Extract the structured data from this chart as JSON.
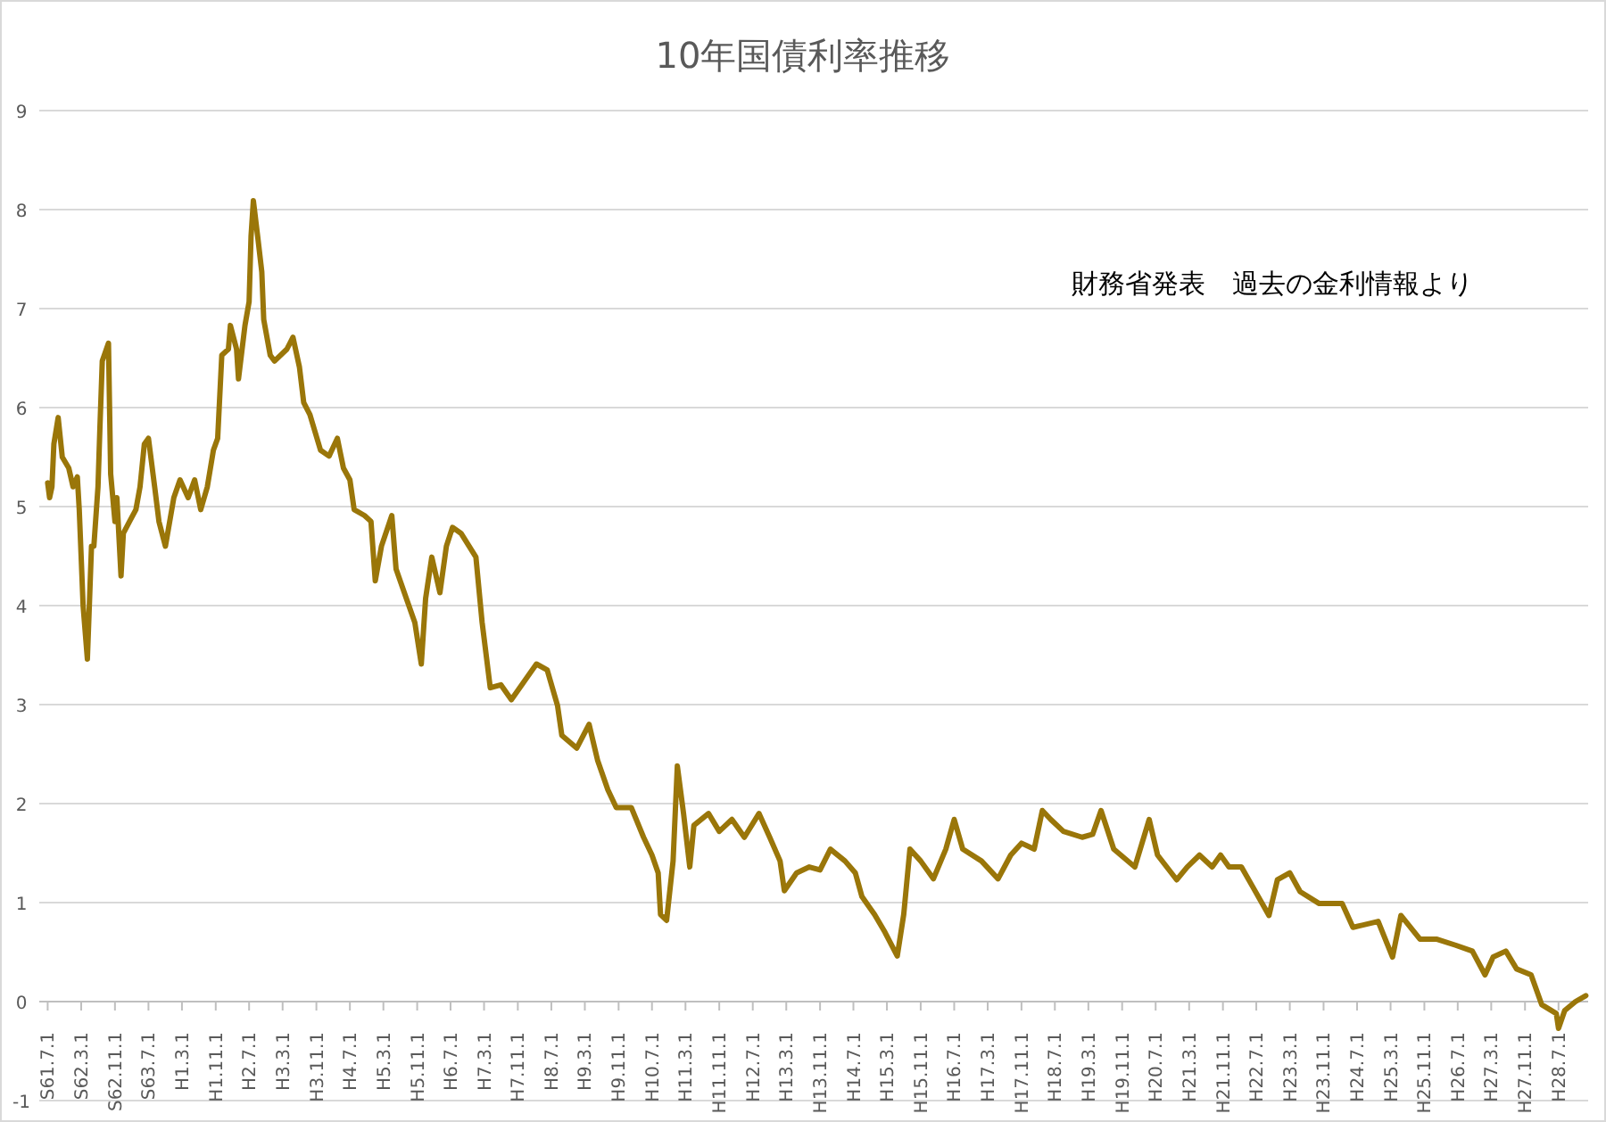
{
  "chart_data": {
    "type": "line",
    "title": "10年国債利率推移",
    "annotations": [
      "財務省発表　過去の金利情報より"
    ],
    "xlim": [
      "1986-05-01",
      "2017-02-01"
    ],
    "xticks": [
      {
        "value": "1986-07-01",
        "label": "S61.7.1"
      },
      {
        "value": "1987-03-01",
        "label": "S62.3.1"
      },
      {
        "value": "1987-11-01",
        "label": "S62.11.1"
      },
      {
        "value": "1988-07-01",
        "label": "S63.7.1"
      },
      {
        "value": "1989-03-01",
        "label": "H1.3.1"
      },
      {
        "value": "1989-11-01",
        "label": "H1.11.1"
      },
      {
        "value": "1990-07-01",
        "label": "H2.7.1"
      },
      {
        "value": "1991-03-01",
        "label": "H3.3.1"
      },
      {
        "value": "1991-11-01",
        "label": "H3.11.1"
      },
      {
        "value": "1992-07-01",
        "label": "H4.7.1"
      },
      {
        "value": "1993-03-01",
        "label": "H5.3.1"
      },
      {
        "value": "1993-11-01",
        "label": "H5.11.1"
      },
      {
        "value": "1994-07-01",
        "label": "H6.7.1"
      },
      {
        "value": "1995-03-01",
        "label": "H7.3.1"
      },
      {
        "value": "1995-11-01",
        "label": "H7.11.1"
      },
      {
        "value": "1996-07-01",
        "label": "H8.7.1"
      },
      {
        "value": "1997-03-01",
        "label": "H9.3.1"
      },
      {
        "value": "1997-11-01",
        "label": "H9.11.1"
      },
      {
        "value": "1998-07-01",
        "label": "H10.7.1"
      },
      {
        "value": "1999-03-01",
        "label": "H11.3.1"
      },
      {
        "value": "1999-11-01",
        "label": "H11.11.1"
      },
      {
        "value": "2000-07-01",
        "label": "H12.7.1"
      },
      {
        "value": "2001-03-01",
        "label": "H13.3.1"
      },
      {
        "value": "2001-11-01",
        "label": "H13.11.1"
      },
      {
        "value": "2002-07-01",
        "label": "H14.7.1"
      },
      {
        "value": "2003-03-01",
        "label": "H15.3.1"
      },
      {
        "value": "2003-11-01",
        "label": "H15.11.1"
      },
      {
        "value": "2004-07-01",
        "label": "H16.7.1"
      },
      {
        "value": "2005-03-01",
        "label": "H17.3.1"
      },
      {
        "value": "2005-11-01",
        "label": "H17.11.1"
      },
      {
        "value": "2006-07-01",
        "label": "H18.7.1"
      },
      {
        "value": "2007-03-01",
        "label": "H19.3.1"
      },
      {
        "value": "2007-11-01",
        "label": "H19.11.1"
      },
      {
        "value": "2008-07-01",
        "label": "H20.7.1"
      },
      {
        "value": "2009-03-01",
        "label": "H21.3.1"
      },
      {
        "value": "2009-11-01",
        "label": "H21.11.1"
      },
      {
        "value": "2010-07-01",
        "label": "H22.7.1"
      },
      {
        "value": "2011-03-01",
        "label": "H23.3.1"
      },
      {
        "value": "2011-11-01",
        "label": "H23.11.1"
      },
      {
        "value": "2012-07-01",
        "label": "H24.7.1"
      },
      {
        "value": "2013-03-01",
        "label": "H25.3.1"
      },
      {
        "value": "2013-11-01",
        "label": "H25.11.1"
      },
      {
        "value": "2014-07-01",
        "label": "H26.7.1"
      },
      {
        "value": "2015-03-01",
        "label": "H27.3.1"
      },
      {
        "value": "2015-11-01",
        "label": "H27.11.1"
      },
      {
        "value": "2016-07-01",
        "label": "H28.7.1"
      }
    ],
    "ylim": [
      -1,
      9
    ],
    "yticks": [
      -1,
      0,
      1,
      2,
      3,
      4,
      5,
      6,
      7,
      8,
      9
    ],
    "grid": "y",
    "x": [
      "1986-07-01",
      "1986-07-15",
      "1986-08-01",
      "1986-08-15",
      "1986-09-15",
      "1986-10-15",
      "1986-12-01",
      "1987-01-01",
      "1987-02-01",
      "1987-02-15",
      "1987-03-01",
      "1987-03-15",
      "1987-04-15",
      "1987-05-15",
      "1987-06-01",
      "1987-07-01",
      "1987-07-15",
      "1987-08-01",
      "1987-09-15",
      "1987-10-01",
      "1987-11-01",
      "1987-11-15",
      "1987-12-15",
      "1988-01-01",
      "1988-02-15",
      "1988-04-01",
      "1988-05-01",
      "1988-06-01",
      "1988-07-01",
      "1988-08-15",
      "1988-09-15",
      "1988-11-01",
      "1989-01-01",
      "1989-02-15",
      "1989-04-15",
      "1989-06-01",
      "1989-07-15",
      "1989-09-01",
      "1989-10-15",
      "1989-11-15",
      "1989-12-15",
      "1990-02-01",
      "1990-02-15",
      "1990-04-01",
      "1990-04-15",
      "1990-06-01",
      "1990-07-01",
      "1990-07-15",
      "1990-08-01",
      "1990-09-01",
      "1990-10-01",
      "1990-10-15",
      "1990-12-01",
      "1991-01-01",
      "1991-04-01",
      "1991-05-15",
      "1991-07-01",
      "1991-08-01",
      "1991-09-15",
      "1991-12-01",
      "1992-02-01",
      "1992-04-01",
      "1992-05-15",
      "1992-07-01",
      "1992-08-01",
      "1992-10-15",
      "1992-12-01",
      "1993-01-01",
      "1993-02-15",
      "1993-05-01",
      "1993-06-01",
      "1993-08-15",
      "1993-10-15",
      "1993-12-01",
      "1994-01-01",
      "1994-02-15",
      "1994-04-15",
      "1994-06-01",
      "1994-07-15",
      "1994-09-15",
      "1995-01-01",
      "1995-02-15",
      "1995-04-15",
      "1995-07-01",
      "1995-09-15",
      "1995-12-15",
      "1996-03-15",
      "1996-06-01",
      "1996-08-15",
      "1996-09-15",
      "1997-01-01",
      "1997-04-01",
      "1997-06-01",
      "1997-08-15",
      "1997-10-15",
      "1998-02-01",
      "1998-05-01",
      "1998-07-01",
      "1998-08-15",
      "1998-09-01",
      "1998-10-15",
      "1998-12-01",
      "1999-01-01",
      "1999-02-15",
      "1999-04-01",
      "1999-05-01",
      "1999-08-15",
      "1999-11-01",
      "2000-02-01",
      "2000-05-01",
      "2000-08-15",
      "2000-11-01",
      "2001-01-15",
      "2001-02-15",
      "2001-05-15",
      "2001-08-15",
      "2001-11-01",
      "2002-01-15",
      "2002-05-01",
      "2002-07-15",
      "2002-09-01",
      "2002-12-01",
      "2003-02-15",
      "2003-05-15",
      "2003-07-01",
      "2003-08-15",
      "2003-11-01",
      "2004-02-01",
      "2004-05-01",
      "2004-07-01",
      "2004-09-01",
      "2005-01-15",
      "2005-05-15",
      "2005-08-15",
      "2005-11-01",
      "2006-02-01",
      "2006-04-01",
      "2006-06-01",
      "2006-09-01",
      "2007-01-15",
      "2007-04-01",
      "2007-06-01",
      "2007-09-01",
      "2008-02-01",
      "2008-05-15",
      "2008-07-15",
      "2008-12-01",
      "2009-02-15",
      "2009-05-15",
      "2009-08-15",
      "2009-10-15",
      "2009-12-15",
      "2010-03-15",
      "2010-06-01",
      "2010-10-01",
      "2010-12-01",
      "2011-03-01",
      "2011-05-15",
      "2011-10-01",
      "2012-03-15",
      "2012-06-01",
      "2012-12-01",
      "2013-03-15",
      "2013-05-15",
      "2013-10-01",
      "2014-02-01",
      "2014-06-15",
      "2014-10-15",
      "2015-01-15",
      "2015-03-15",
      "2015-06-15",
      "2015-09-01",
      "2015-12-15",
      "2016-03-01",
      "2016-06-15",
      "2016-07-01",
      "2016-08-15",
      "2016-11-01",
      "2017-01-15"
    ],
    "series": [
      {
        "color": "#9a7609",
        "values": [
          5.24,
          5.09,
          5.2,
          5.63,
          5.9,
          5.5,
          5.39,
          5.2,
          5.3,
          4.97,
          4.49,
          4.0,
          3.46,
          4.6,
          4.6,
          5.2,
          5.8,
          6.47,
          6.65,
          5.33,
          4.85,
          5.09,
          4.3,
          4.73,
          4.85,
          4.97,
          5.2,
          5.63,
          5.69,
          5.2,
          4.85,
          4.6,
          5.09,
          5.27,
          5.09,
          5.27,
          4.97,
          5.2,
          5.57,
          5.69,
          6.53,
          6.59,
          6.83,
          6.59,
          6.29,
          6.83,
          7.07,
          7.73,
          8.09,
          7.73,
          7.37,
          6.89,
          6.53,
          6.47,
          6.59,
          6.71,
          6.41,
          6.05,
          5.93,
          5.57,
          5.51,
          5.69,
          5.39,
          5.27,
          4.97,
          4.91,
          4.85,
          4.25,
          4.6,
          4.91,
          4.37,
          4.07,
          3.83,
          3.41,
          4.07,
          4.49,
          4.13,
          4.6,
          4.79,
          4.73,
          4.49,
          3.83,
          3.17,
          3.2,
          3.05,
          3.23,
          3.41,
          3.35,
          2.99,
          2.69,
          2.56,
          2.8,
          2.44,
          2.14,
          1.96,
          1.96,
          1.66,
          1.48,
          1.3,
          0.88,
          0.82,
          1.42,
          2.38,
          1.9,
          1.36,
          1.78,
          1.9,
          1.72,
          1.84,
          1.66,
          1.9,
          1.66,
          1.42,
          1.12,
          1.3,
          1.36,
          1.33,
          1.54,
          1.42,
          1.3,
          1.06,
          0.88,
          0.7,
          0.46,
          0.88,
          1.54,
          1.42,
          1.24,
          1.54,
          1.84,
          1.54,
          1.42,
          1.24,
          1.48,
          1.6,
          1.54,
          1.93,
          1.84,
          1.72,
          1.66,
          1.69,
          1.93,
          1.54,
          1.36,
          1.84,
          1.48,
          1.23,
          1.36,
          1.48,
          1.36,
          1.48,
          1.36,
          1.36,
          1.17,
          0.87,
          1.23,
          1.3,
          1.11,
          0.99,
          0.99,
          0.75,
          0.81,
          0.45,
          0.87,
          0.63,
          0.63,
          0.57,
          0.51,
          0.27,
          0.45,
          0.51,
          0.33,
          0.27,
          -0.03,
          -0.12,
          -0.27,
          -0.09,
          0,
          0.06
        ]
      }
    ]
  }
}
